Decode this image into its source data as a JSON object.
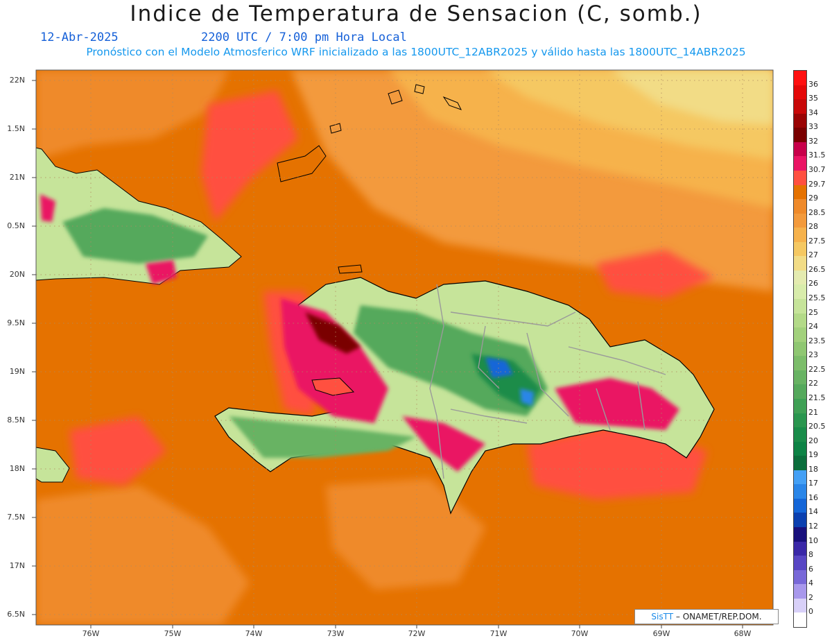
{
  "header": {
    "title": "Indice de Temperatura de Sensacion (C, somb.)",
    "date": "12-Abr-2025",
    "time": "2200 UTC / 7:00 pm Hora Local",
    "model_info": "Pronóstico con el Modelo Atmosferico WRF inicializado a las 1800UTC_12ABR2025 y válido hasta las  1800UTC_14ABR2025"
  },
  "axes": {
    "lat_labels": [
      "22N",
      "1.5N",
      "21N",
      "0.5N",
      "20N",
      "9.5N",
      "19N",
      "8.5N",
      "18N",
      "7.5N",
      "17N",
      "6.5N"
    ],
    "lon_labels": [
      "76W",
      "75W",
      "74W",
      "73W",
      "72W",
      "71W",
      "70W",
      "69W",
      "68W"
    ]
  },
  "legend": {
    "labels": [
      "36",
      "35",
      "34",
      "33",
      "32",
      "31.5",
      "30.7",
      "29.7",
      "29",
      "28.5",
      "28",
      "27.5",
      "27",
      "26.5",
      "26",
      "25.5",
      "25",
      "24",
      "23.5",
      "23",
      "22.5",
      "22",
      "21.5",
      "21",
      "20.5",
      "20",
      "19",
      "18",
      "17",
      "16",
      "14",
      "12",
      "10",
      "8",
      "6",
      "4",
      "2",
      "0"
    ],
    "colors": [
      "#ff1010",
      "#e40808",
      "#c80808",
      "#9a0404",
      "#7a0000",
      "#c8004a",
      "#ea1464",
      "#ff5040",
      "#e57200",
      "#ef8a2a",
      "#f39a3c",
      "#f6b24c",
      "#f5c862",
      "#f2dc86",
      "#e4ebb0",
      "#d8ecab",
      "#c6e49a",
      "#b3da88",
      "#a2d17c",
      "#8fc772",
      "#7cbd6a",
      "#68b363",
      "#55a95c",
      "#3fa055",
      "#2a964f",
      "#1a8c4a",
      "#0d8345",
      "#0b6e3c",
      "#44a0f5",
      "#2a86e8",
      "#1466d8",
      "#0b40b0",
      "#18107c",
      "#3a28a8",
      "#5846c4",
      "#7868d8",
      "#a898ec",
      "#d8d0f8"
    ]
  },
  "credit": {
    "brand": "SisTT",
    "text": "– ONAMET/REP.DOM."
  }
}
